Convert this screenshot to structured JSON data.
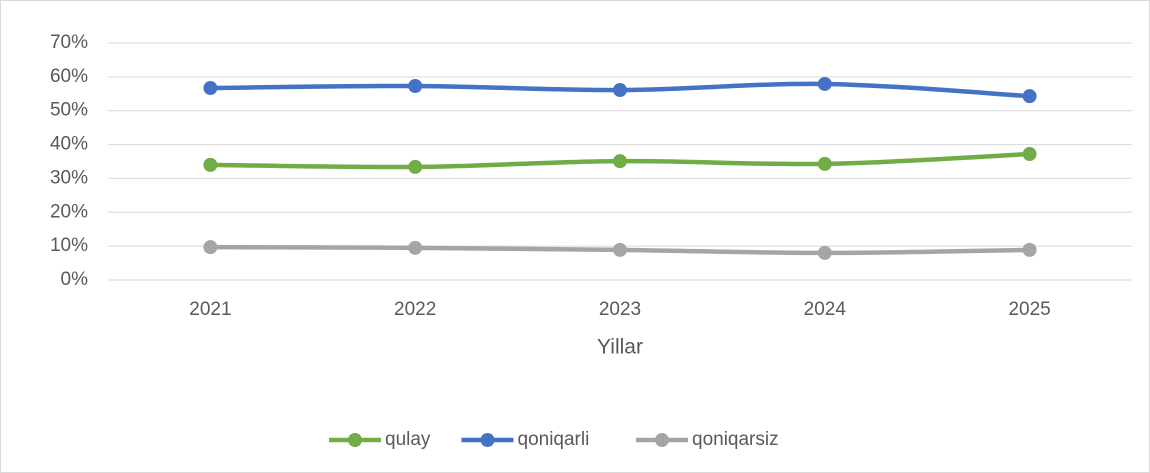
{
  "chart_data": {
    "type": "line",
    "x_label": "Yillar",
    "categories": [
      "2021",
      "2022",
      "2023",
      "2024",
      "2025"
    ],
    "series": [
      {
        "name": "qulay",
        "color": "#70ad47",
        "values": [
          34.0,
          33.4,
          35.1,
          34.3,
          37.2
        ]
      },
      {
        "name": "qoniqarli",
        "color": "#4472c4",
        "values": [
          56.7,
          57.3,
          56.1,
          57.9,
          54.3
        ]
      },
      {
        "name": "qoniqarsiz",
        "color": "#a5a5a5",
        "values": [
          9.7,
          9.5,
          8.9,
          8.0,
          8.9
        ]
      }
    ],
    "ylim": [
      0,
      70
    ],
    "yticks": [
      {
        "value": 0,
        "label": "0%"
      },
      {
        "value": 10,
        "label": "10%"
      },
      {
        "value": 20,
        "label": "20%"
      },
      {
        "value": 30,
        "label": "30%"
      },
      {
        "value": 40,
        "label": "40%"
      },
      {
        "value": 50,
        "label": "50%"
      },
      {
        "value": 60,
        "label": "60%"
      },
      {
        "value": 70,
        "label": "70%"
      }
    ],
    "grid": true,
    "legend": "bottom"
  }
}
